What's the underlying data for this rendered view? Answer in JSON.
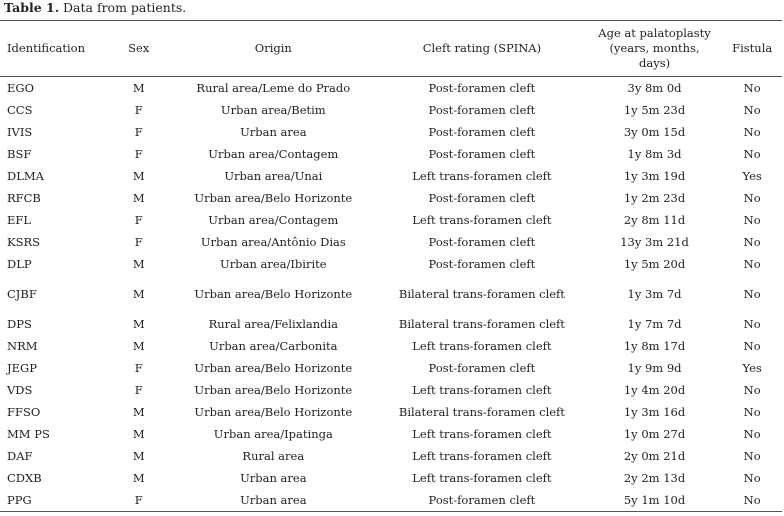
{
  "caption": {
    "label": "Table 1.",
    "text": " Data from patients."
  },
  "headers": {
    "identification": "Identification",
    "sex": "Sex",
    "origin": "Origin",
    "cleft": "Cleft rating (SPINA)",
    "age_line1": "Age at palatoplasty",
    "age_line2": "(years, months,",
    "age_line3": "days)",
    "fistula": "Fistula"
  },
  "rows": [
    {
      "id": "EGO",
      "sex": "M",
      "origin": "Rural area/Leme do Prado",
      "cleft": "Post-foramen cleft",
      "age": "3y 8m 0d",
      "fistula": "No"
    },
    {
      "id": "CCS",
      "sex": "F",
      "origin": "Urban area/Betim",
      "cleft": "Post-foramen cleft",
      "age": "1y 5m 23d",
      "fistula": "No"
    },
    {
      "id": "IVIS",
      "sex": "F",
      "origin": "Urban area",
      "cleft": "Post-foramen cleft",
      "age": "3y 0m 15d",
      "fistula": "No"
    },
    {
      "id": "BSF",
      "sex": "F",
      "origin": "Urban area/Contagem",
      "cleft": "Post-foramen cleft",
      "age": "1y 8m 3d",
      "fistula": "No"
    },
    {
      "id": "DLMA",
      "sex": "M",
      "origin": "Urban area/Unai",
      "cleft": "Left trans-foramen cleft",
      "age": "1y 3m 19d",
      "fistula": "Yes"
    },
    {
      "id": "RFCB",
      "sex": "M",
      "origin": "Urban area/Belo Horizonte",
      "cleft": "Post-foramen cleft",
      "age": "1y 2m 23d",
      "fistula": "No"
    },
    {
      "id": "EFL",
      "sex": "F",
      "origin": "Urban area/Contagem",
      "cleft": "Left trans-foramen cleft",
      "age": "2y 8m 11d",
      "fistula": "No"
    },
    {
      "id": "KSRS",
      "sex": "F",
      "origin": "Urban area/Antônio Dias",
      "cleft": "Post-foramen cleft",
      "age": "13y 3m 21d",
      "fistula": "No"
    },
    {
      "id": "DLP",
      "sex": "M",
      "origin": "Urban area/Ibirite",
      "cleft": "Post-foramen cleft",
      "age": "1y 5m 20d",
      "fistula": "No"
    },
    {
      "id": "CJBF",
      "sex": "M",
      "origin": "Urban area/Belo Horizonte",
      "cleft": "Bilateral trans-foramen cleft",
      "age": "1y 3m 7d",
      "fistula": "No"
    },
    {
      "id": "DPS",
      "sex": "M",
      "origin": "Rural area/Felixlandia",
      "cleft": "Bilateral trans-foramen cleft",
      "age": "1y 7m 7d",
      "fistula": "No"
    },
    {
      "id": "NRM",
      "sex": "M",
      "origin": "Urban area/Carbonita",
      "cleft": "Left trans-foramen cleft",
      "age": "1y 8m 17d",
      "fistula": "No"
    },
    {
      "id": "JEGP",
      "sex": "F",
      "origin": "Urban area/Belo Horizonte",
      "cleft": "Post-foramen cleft",
      "age": "1y 9m 9d",
      "fistula": "Yes"
    },
    {
      "id": "VDS",
      "sex": "F",
      "origin": "Urban area/Belo Horizonte",
      "cleft": "Left trans-foramen cleft",
      "age": "1y 4m 20d",
      "fistula": "No"
    },
    {
      "id": "FFSO",
      "sex": "M",
      "origin": "Urban area/Belo Horizonte",
      "cleft": "Bilateral trans-foramen cleft",
      "age": "1y 3m 16d",
      "fistula": "No"
    },
    {
      "id": "MM PS",
      "sex": "M",
      "origin": "Urban area/Ipatinga",
      "cleft": "Left trans-foramen cleft",
      "age": "1y 0m 27d",
      "fistula": "No"
    },
    {
      "id": "DAF",
      "sex": "M",
      "origin": "Rural area",
      "cleft": "Left trans-foramen cleft",
      "age": "2y 0m 21d",
      "fistula": "No"
    },
    {
      "id": "CDXB",
      "sex": "M",
      "origin": "Urban area",
      "cleft": "Left trans-foramen cleft",
      "age": "2y 2m 13d",
      "fistula": "No"
    },
    {
      "id": "PPG",
      "sex": "F",
      "origin": "Urban area",
      "cleft": "Post-foramen cleft",
      "age": "5y 1m 10d",
      "fistula": "No"
    }
  ]
}
